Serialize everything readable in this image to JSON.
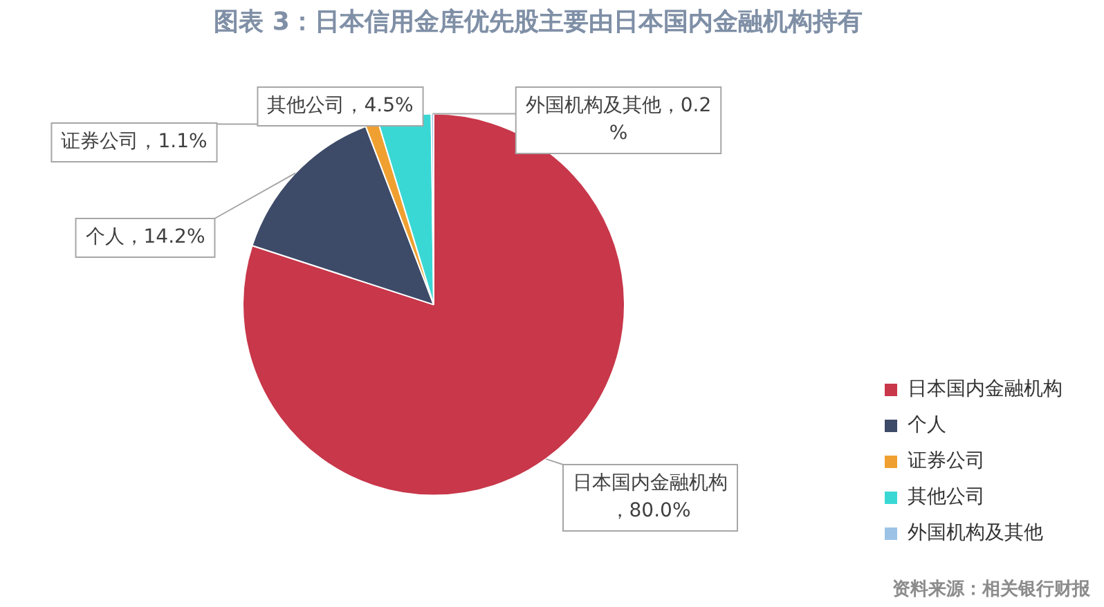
{
  "chart_data": {
    "type": "pie",
    "title": "图表 3：日本信用金库优先股主要由日本国内金融机构持有",
    "categories": [
      "日本国内金融机构",
      "个人",
      "证券公司",
      "其他公司",
      "外国机构及其他"
    ],
    "values": [
      80.0,
      14.2,
      1.1,
      4.5,
      0.2
    ],
    "value_labels": [
      "日本国内金融机构，80.0%",
      "个人，14.2%",
      "证券公司，1.1%",
      "其他公司，4.5%",
      "外国机构及其他，0.2%"
    ],
    "colors": [
      "#c8374a",
      "#3d4a68",
      "#f0a030",
      "#3ad8d4",
      "#9cc3e6"
    ],
    "legend": "right",
    "annotations": [
      "资料来源：相关银行财报"
    ]
  }
}
